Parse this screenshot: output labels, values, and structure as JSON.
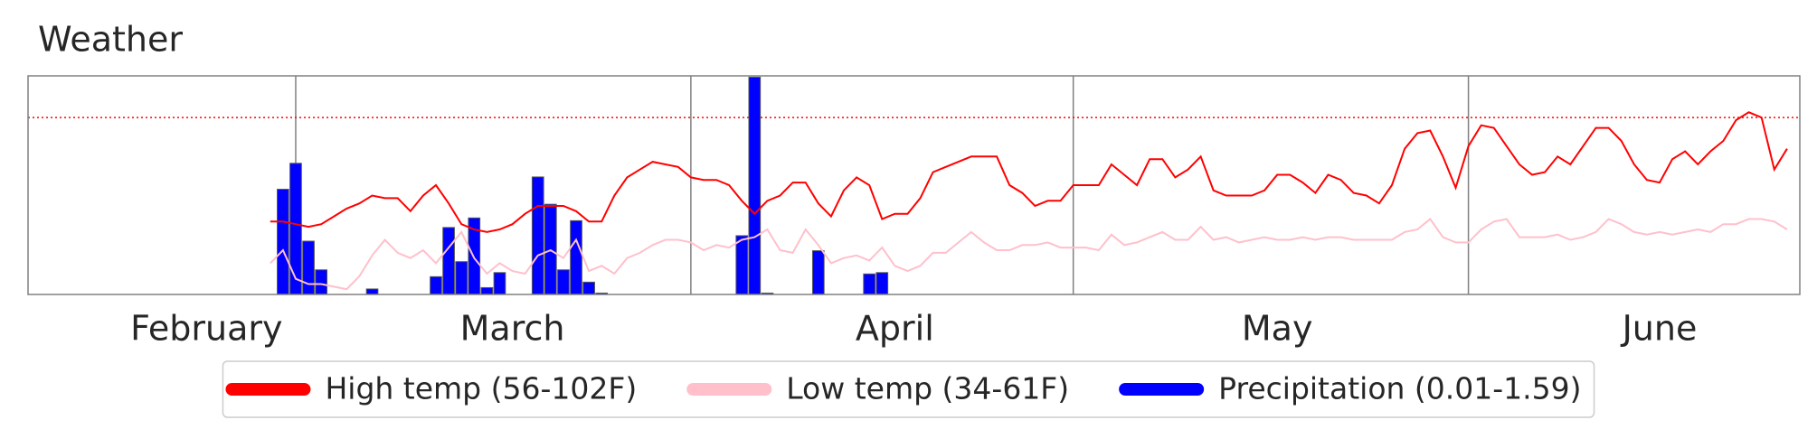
{
  "chart_data": {
    "type": "line",
    "title": "Weather",
    "x": [
      58,
      59,
      60,
      61,
      62,
      63,
      64,
      65,
      66,
      67,
      68,
      69,
      70,
      71,
      72,
      73,
      74,
      75,
      76,
      77,
      78,
      79,
      80,
      81,
      82,
      83,
      84,
      85,
      86,
      87,
      88,
      89,
      90,
      91,
      92,
      93,
      94,
      95,
      96,
      97,
      98,
      99,
      100,
      101,
      102,
      103,
      104,
      105,
      106,
      107,
      108,
      109,
      110,
      111,
      112,
      113,
      114,
      115,
      116,
      117,
      118,
      119,
      120,
      121,
      122,
      123,
      124,
      125,
      126,
      127,
      128,
      129,
      130,
      131,
      132,
      133,
      134,
      135,
      136,
      137,
      138,
      139,
      140,
      141,
      142,
      143,
      144,
      145,
      146,
      147,
      148,
      149,
      150,
      151,
      152,
      153,
      154,
      155,
      156,
      157,
      158,
      159,
      160,
      161,
      162,
      163,
      164,
      165,
      166,
      167,
      168,
      169,
      170,
      171,
      172,
      173,
      174,
      175,
      176,
      177
    ],
    "xlim": [
      39,
      178
    ],
    "xticks": [
      {
        "value": 53,
        "label": "February"
      },
      {
        "value": 77,
        "label": "March"
      },
      {
        "value": 107,
        "label": "April"
      },
      {
        "value": 137,
        "label": "May"
      },
      {
        "value": 167,
        "label": "June"
      }
    ],
    "xgrid": [
      60,
      91,
      121,
      152
    ],
    "ylim": [
      32,
      116
    ],
    "y2lim": [
      0,
      1.6
    ],
    "reference_line": {
      "value": 100,
      "color": "#ff0000"
    },
    "legend": "bottom",
    "series": [
      {
        "name": "High temp (56-102F)",
        "color": "#ff0000",
        "values": [
          60,
          60,
          59,
          58,
          59,
          62,
          65,
          67,
          70,
          69,
          69,
          64,
          70,
          74,
          67,
          59,
          57,
          56,
          57,
          59,
          63,
          66,
          66,
          66,
          64,
          60,
          60,
          70,
          77,
          80,
          83,
          82,
          81,
          77,
          76,
          76,
          74,
          68,
          63,
          68,
          70,
          75,
          75,
          67,
          62,
          72,
          77,
          74,
          61,
          63,
          63,
          69,
          79,
          81,
          83,
          85,
          85,
          85,
          74,
          71,
          66,
          68,
          68,
          74,
          74,
          74,
          82,
          78,
          74,
          84,
          84,
          77,
          80,
          85,
          72,
          70,
          70,
          70,
          72,
          78,
          78,
          75,
          71,
          78,
          76,
          71,
          70,
          67,
          74,
          88,
          94,
          95,
          85,
          73,
          89,
          97,
          96,
          89,
          82,
          78,
          79,
          85,
          82,
          89,
          96,
          96,
          91,
          82,
          76,
          75,
          84,
          87,
          82,
          87,
          91,
          99,
          102,
          100,
          80,
          88
        ]
      },
      {
        "name": "Low temp (34-61F)",
        "color": "#ffc0cb",
        "values": [
          44,
          49,
          38,
          36,
          36,
          35,
          34,
          39,
          47,
          53,
          48,
          46,
          49,
          44,
          50,
          56,
          46,
          40,
          44,
          41,
          40,
          47,
          49,
          46,
          53,
          41,
          43,
          40,
          46,
          48,
          51,
          53,
          53,
          52,
          49,
          51,
          50,
          53,
          54,
          57,
          49,
          48,
          57,
          51,
          44,
          46,
          47,
          45,
          50,
          43,
          41,
          43,
          48,
          48,
          52,
          56,
          52,
          49,
          49,
          51,
          51,
          52,
          50,
          50,
          50,
          49,
          55,
          51,
          52,
          54,
          56,
          53,
          53,
          58,
          53,
          54,
          52,
          53,
          54,
          53,
          53,
          54,
          53,
          54,
          54,
          53,
          53,
          53,
          53,
          56,
          57,
          61,
          54,
          52,
          52,
          57,
          60,
          61,
          54,
          54,
          54,
          55,
          53,
          54,
          56,
          61,
          59,
          56,
          55,
          56,
          55,
          56,
          57,
          56,
          59,
          59,
          61,
          61,
          60,
          57
        ]
      },
      {
        "name": "Precipitation (0.01-1.59)",
        "color": "#0000ff",
        "type": "bar",
        "axis": "y2",
        "x": [
          59,
          60,
          61,
          62,
          66,
          71,
          72,
          73,
          74,
          75,
          76,
          79,
          80,
          81,
          82,
          83,
          84,
          95,
          96,
          97,
          101,
          105,
          106
        ],
        "values": [
          0.77,
          0.96,
          0.39,
          0.18,
          0.04,
          0.13,
          0.49,
          0.24,
          0.56,
          0.05,
          0.16,
          0.86,
          0.66,
          0.18,
          0.54,
          0.09,
          0.01,
          0.43,
          1.59,
          0.01,
          0.32,
          0.15,
          0.16
        ]
      }
    ]
  }
}
